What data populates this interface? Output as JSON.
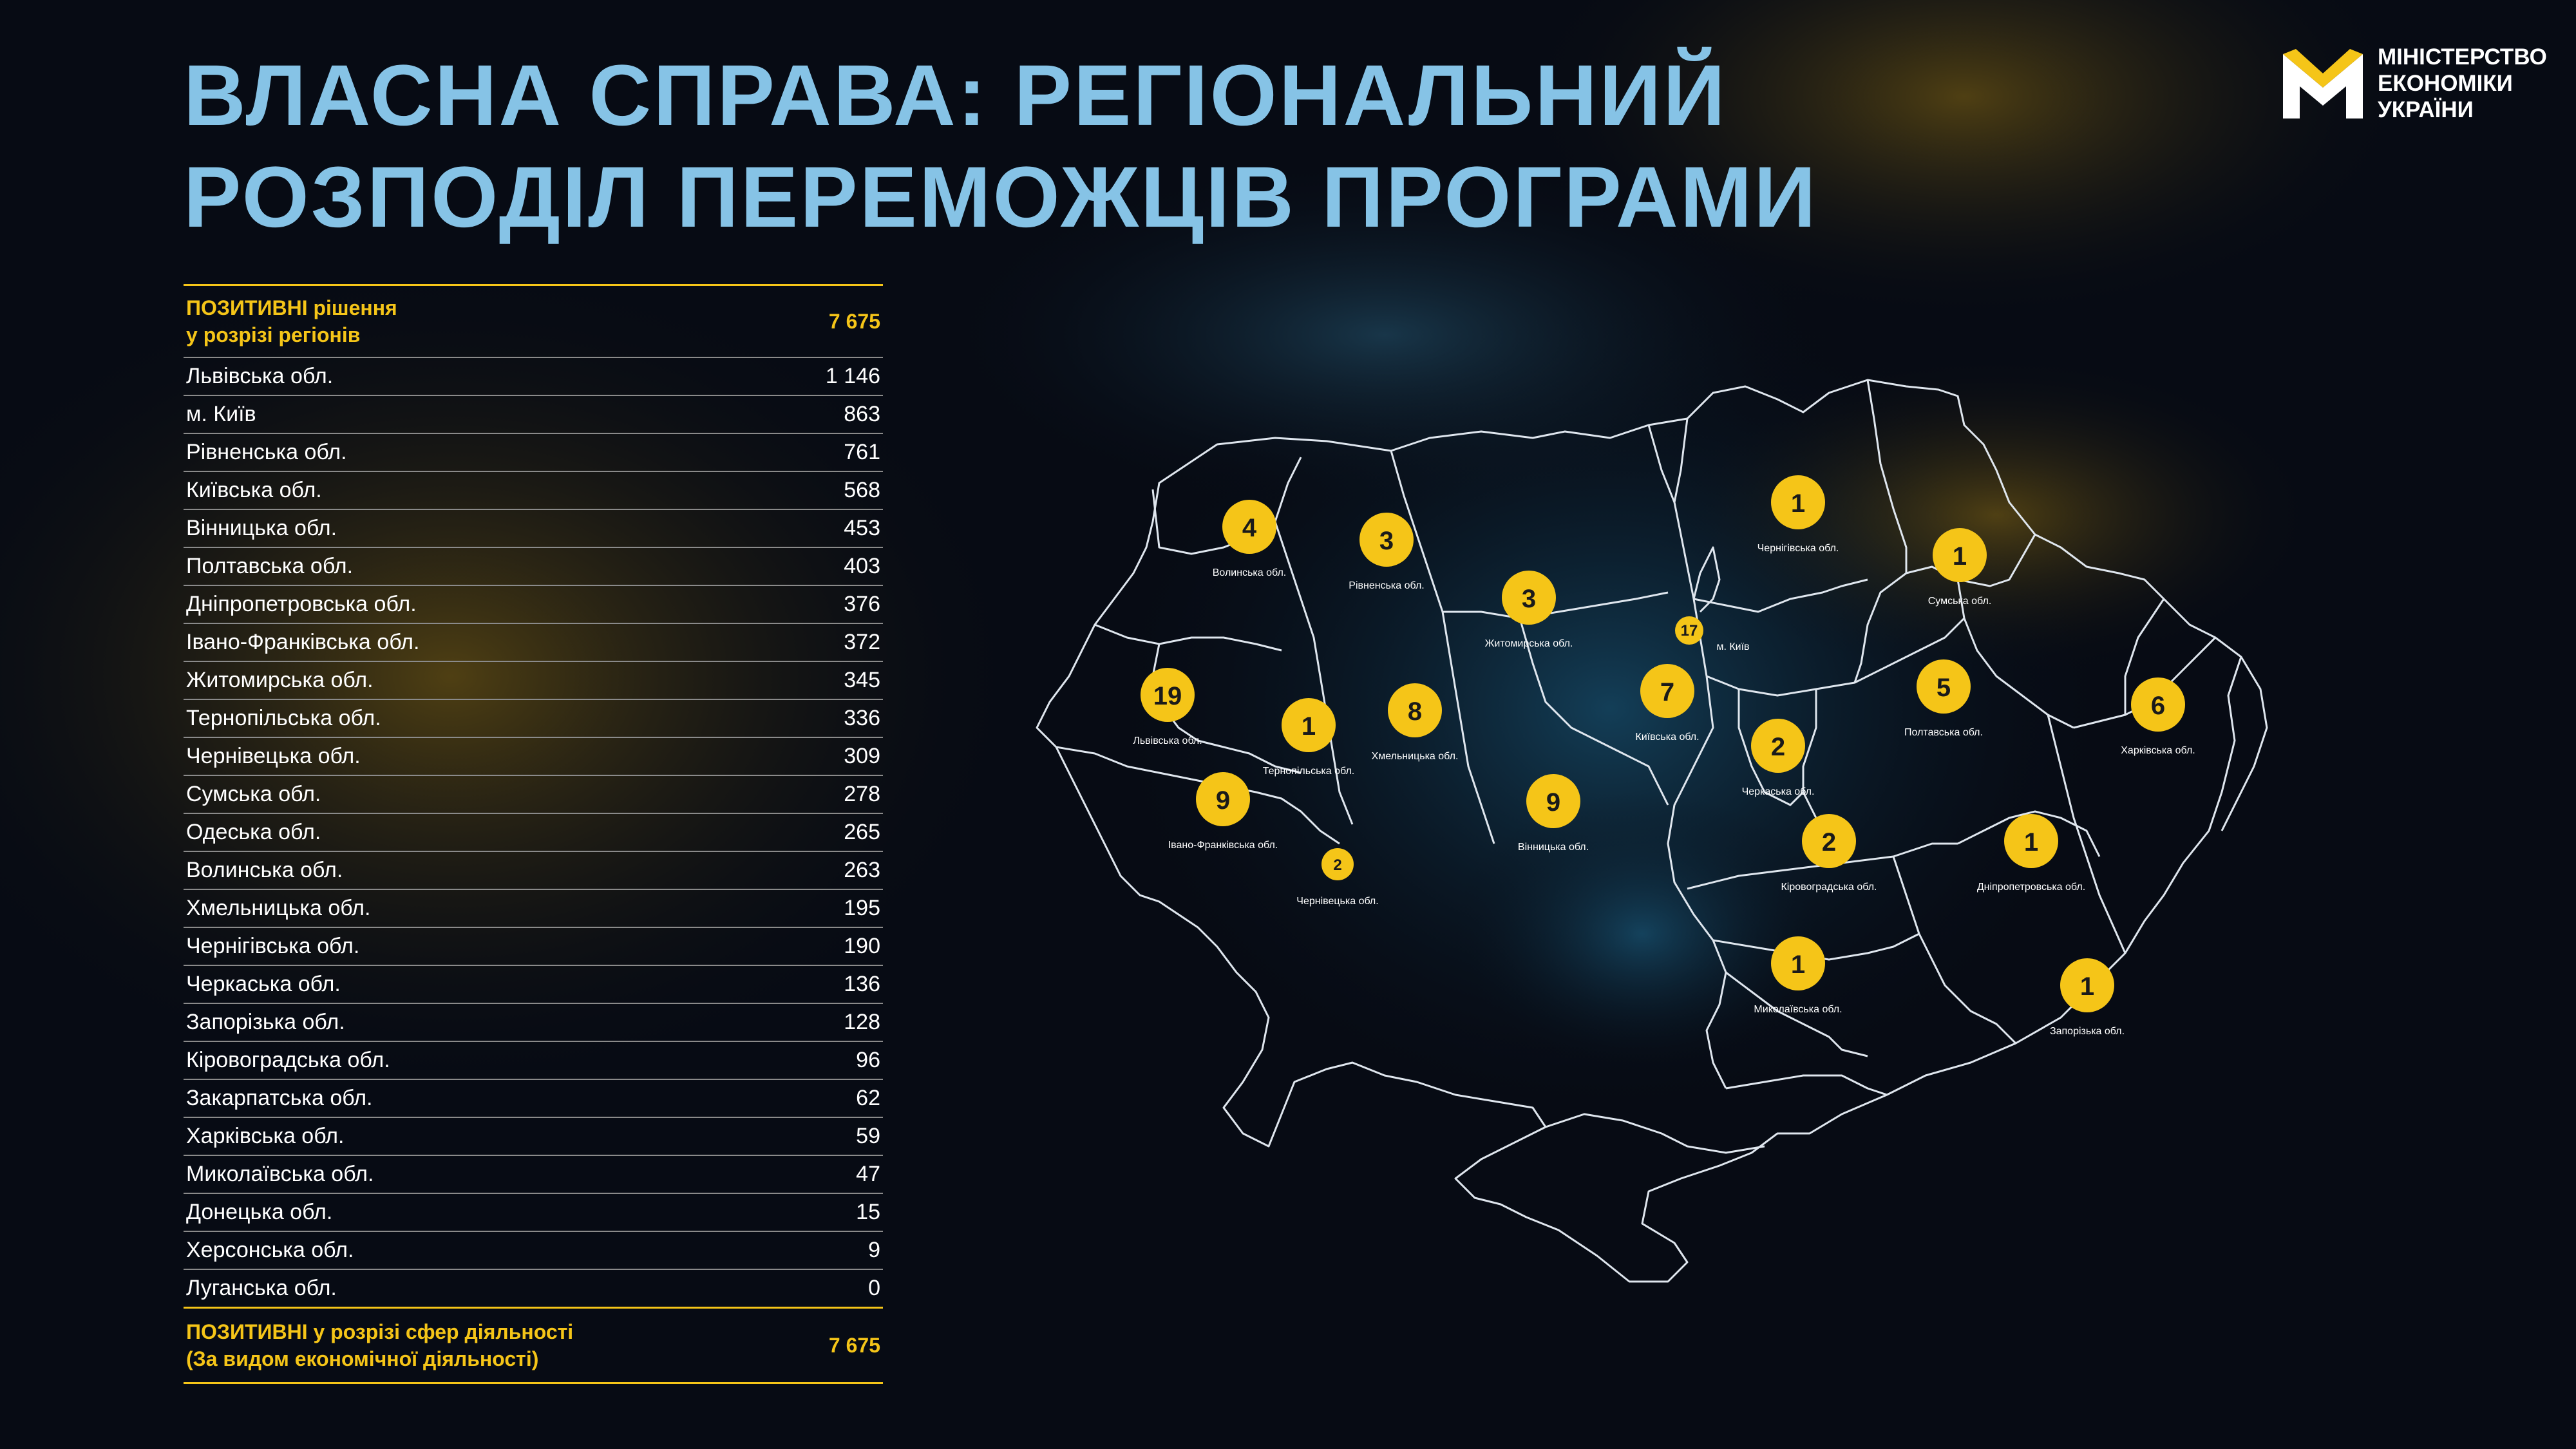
{
  "title": {
    "line1": "ВЛАСНА СПРАВА: РЕГІОНАЛЬНИЙ",
    "line2": "РОЗПОДІЛ ПЕРЕМОЖЦІВ ПРОГРАМИ"
  },
  "logo": {
    "line1": "МІНІСТЕРСТВО",
    "line2": "ЕКОНОМІКИ",
    "line3": "УКРАЇНИ",
    "icon": "ministry-m-logo-icon"
  },
  "colors": {
    "accent": "#f5c518",
    "title": "#86c3e6",
    "background": "#070b14"
  },
  "table": {
    "header": {
      "label_line1": "ПОЗИТИВНІ рішення",
      "label_line2": "у розрізі регіонів",
      "value": "7 675"
    },
    "rows": [
      {
        "label": "Львівська обл.",
        "value": "1 146"
      },
      {
        "label": "м. Київ",
        "value": "863"
      },
      {
        "label": "Рівненська обл.",
        "value": "761"
      },
      {
        "label": "Київська обл.",
        "value": "568"
      },
      {
        "label": "Вінницька обл.",
        "value": "453"
      },
      {
        "label": "Полтавська обл.",
        "value": "403"
      },
      {
        "label": "Дніпропетровська обл.",
        "value": "376"
      },
      {
        "label": "Івано-Франківська обл.",
        "value": "372"
      },
      {
        "label": "Житомирська обл.",
        "value": "345"
      },
      {
        "label": "Тернопільська обл.",
        "value": "336"
      },
      {
        "label": "Чернівецька обл.",
        "value": "309"
      },
      {
        "label": "Сумська обл.",
        "value": "278"
      },
      {
        "label": "Одеська обл.",
        "value": "265"
      },
      {
        "label": "Волинська обл.",
        "value": "263"
      },
      {
        "label": "Хмельницька обл.",
        "value": "195"
      },
      {
        "label": "Чернігівська обл.",
        "value": "190"
      },
      {
        "label": "Черкаська обл.",
        "value": "136"
      },
      {
        "label": "Запорізька обл.",
        "value": "128"
      },
      {
        "label": "Кіровоградська обл.",
        "value": "96"
      },
      {
        "label": "Закарпатська обл.",
        "value": "62"
      },
      {
        "label": "Харківська обл.",
        "value": "59"
      },
      {
        "label": "Миколаївська обл.",
        "value": "47"
      },
      {
        "label": "Донецька обл.",
        "value": "15"
      },
      {
        "label": "Херсонська обл.",
        "value": "9"
      },
      {
        "label": "Луганська обл.",
        "value": "0"
      }
    ],
    "footer": {
      "label_line1": "ПОЗИТИВНІ у розрізі сфер діяльності",
      "label_line2": "(За видом економічної діяльності)",
      "value": "7 675"
    }
  },
  "map": {
    "markers": [
      {
        "id": "volyn",
        "count": "4",
        "label": "Волинська обл."
      },
      {
        "id": "rivne",
        "count": "3",
        "label": "Рівненська обл."
      },
      {
        "id": "zhytomyr",
        "count": "3",
        "label": "Житомирська обл."
      },
      {
        "id": "chernihiv",
        "count": "1",
        "label": "Чернігівська обл."
      },
      {
        "id": "sumy",
        "count": "1",
        "label": "Сумська обл."
      },
      {
        "id": "kyiv-city",
        "count": "17",
        "label": "м. Київ"
      },
      {
        "id": "lviv",
        "count": "19",
        "label": "Львівська обл."
      },
      {
        "id": "ternopil",
        "count": "1",
        "label": "Тернопільська обл."
      },
      {
        "id": "khmelnytskyi",
        "count": "8",
        "label": "Хмельницька обл."
      },
      {
        "id": "kyiv-oblast",
        "count": "7",
        "label": "Київська обл."
      },
      {
        "id": "poltava",
        "count": "5",
        "label": "Полтавська обл."
      },
      {
        "id": "kharkiv",
        "count": "6",
        "label": "Харківська обл."
      },
      {
        "id": "cherkasy",
        "count": "2",
        "label": "Черкаська обл."
      },
      {
        "id": "ivano-frankivsk",
        "count": "9",
        "label": "Івано-Франківська обл."
      },
      {
        "id": "chernivtsi",
        "count": "2",
        "label": "Чернівецька обл."
      },
      {
        "id": "vinnytsia",
        "count": "9",
        "label": "Вінницька обл."
      },
      {
        "id": "kirovohrad",
        "count": "2",
        "label": "Кіровоградська обл."
      },
      {
        "id": "dnipro",
        "count": "1",
        "label": "Дніпропетровська обл."
      },
      {
        "id": "mykolaiv",
        "count": "1",
        "label": "Миколаївська обл."
      },
      {
        "id": "zaporizhzhia",
        "count": "1",
        "label": "Запорізька обл."
      }
    ]
  }
}
